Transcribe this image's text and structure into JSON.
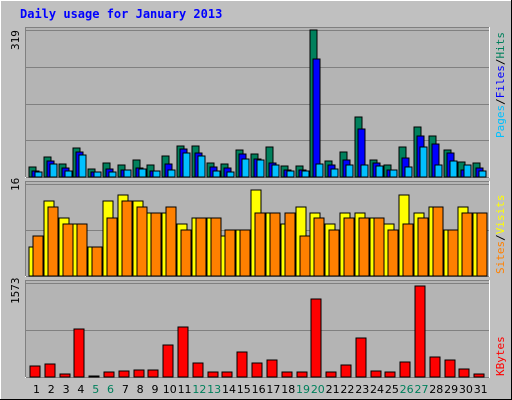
{
  "title": "Daily usage for January 2013",
  "colors": {
    "background": "#c0c0c0",
    "plot_bg": "#b4b4b4",
    "title": "#0000ff",
    "hits": "#00805c",
    "files": "#0000ff",
    "pages": "#00c0ff",
    "visits": "#ffff00",
    "sites": "#ff8000",
    "kbytes": "#ff0000",
    "weekend_day": "#00805c",
    "weekday_day": "#000000"
  },
  "chart_data": [
    {
      "type": "bar",
      "title": "Daily usage for January 2013",
      "categories": [
        "1",
        "2",
        "3",
        "4",
        "5",
        "6",
        "7",
        "8",
        "9",
        "10",
        "11",
        "12",
        "13",
        "14",
        "15",
        "16",
        "17",
        "18",
        "19",
        "20",
        "21",
        "22",
        "23",
        "24",
        "25",
        "26",
        "27",
        "28",
        "29",
        "30",
        "31"
      ],
      "weekend_days": [
        "5",
        "6",
        "12",
        "13",
        "19",
        "20",
        "26",
        "27"
      ],
      "ymax_label": "319",
      "ylim": [
        0,
        319
      ],
      "legend": [
        "Hits",
        "Files",
        "Pages"
      ],
      "series": [
        {
          "name": "Hits",
          "values": [
            22,
            44,
            28,
            62,
            17,
            31,
            27,
            37,
            27,
            46,
            68,
            67,
            31,
            28,
            59,
            50,
            66,
            24,
            24,
            319,
            35,
            55,
            130,
            37,
            26,
            65,
            108,
            88,
            58,
            32,
            31
          ]
        },
        {
          "name": "Files",
          "values": [
            12,
            34,
            19,
            55,
            11,
            17,
            16,
            19,
            14,
            28,
            60,
            52,
            21,
            20,
            50,
            40,
            31,
            16,
            15,
            256,
            25,
            37,
            104,
            30,
            16,
            42,
            89,
            71,
            52,
            16,
            20
          ]
        },
        {
          "name": "Pages",
          "values": [
            10,
            28,
            13,
            47,
            10,
            11,
            15,
            17,
            12,
            16,
            51,
            46,
            14,
            11,
            38,
            36,
            25,
            14,
            13,
            28,
            18,
            27,
            27,
            23,
            15,
            21,
            65,
            25,
            35,
            26,
            14
          ]
        }
      ]
    },
    {
      "type": "bar",
      "categories": [
        "1",
        "2",
        "3",
        "4",
        "5",
        "6",
        "7",
        "8",
        "9",
        "10",
        "11",
        "12",
        "13",
        "14",
        "15",
        "16",
        "17",
        "18",
        "19",
        "20",
        "21",
        "22",
        "23",
        "24",
        "25",
        "26",
        "27",
        "28",
        "29",
        "30",
        "31"
      ],
      "ymax_label": "16",
      "ylim": [
        0,
        16
      ],
      "legend": [
        "Visits",
        "Sites"
      ],
      "series": [
        {
          "name": "Visits",
          "values": [
            5,
            13,
            10,
            9,
            5,
            13,
            14,
            13,
            11,
            11,
            9,
            10,
            10,
            7,
            8,
            15,
            11,
            9,
            12,
            11,
            9,
            11,
            11,
            10,
            9,
            14,
            11,
            12,
            8,
            12,
            11
          ]
        },
        {
          "name": "Sites",
          "values": [
            7,
            12,
            9,
            9,
            5,
            10,
            13,
            12,
            11,
            12,
            8,
            10,
            10,
            8,
            8,
            11,
            11,
            11,
            7,
            10,
            8,
            10,
            10,
            10,
            8,
            9,
            10,
            12,
            8,
            11,
            11
          ]
        }
      ]
    },
    {
      "type": "bar",
      "categories": [
        "1",
        "2",
        "3",
        "4",
        "5",
        "6",
        "7",
        "8",
        "9",
        "10",
        "11",
        "12",
        "13",
        "14",
        "15",
        "16",
        "17",
        "18",
        "19",
        "20",
        "21",
        "22",
        "23",
        "24",
        "25",
        "26",
        "27",
        "28",
        "29",
        "30",
        "31"
      ],
      "ymax_label": "1573",
      "ylim": [
        0,
        1573
      ],
      "legend": [
        "KBytes"
      ],
      "series": [
        {
          "name": "KBytes",
          "values": [
            180,
            220,
            50,
            810,
            10,
            90,
            100,
            110,
            110,
            530,
            840,
            230,
            90,
            80,
            410,
            240,
            280,
            80,
            90,
            1310,
            90,
            200,
            650,
            100,
            90,
            250,
            1520,
            330,
            280,
            140,
            50
          ]
        }
      ]
    }
  ]
}
